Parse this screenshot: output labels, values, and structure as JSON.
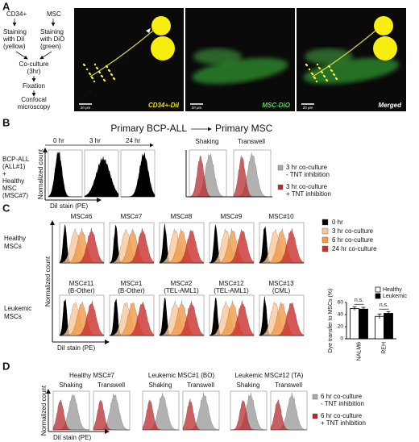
{
  "panel_a": {
    "label": "A",
    "flow": {
      "start_left": "CD34+",
      "start_right": "MSC",
      "stain_left": [
        "Staining",
        "with DiI",
        "(yellow)"
      ],
      "stain_right": [
        "Staining",
        "with DiO",
        "(green)"
      ],
      "coculture": [
        "Co-culture",
        "(3hr)"
      ],
      "fixation": "Fixation",
      "microscopy": [
        "Confocal",
        "microscopy"
      ]
    },
    "images": [
      {
        "caption": "CD34+-DiI",
        "scale_bar": "20 μm"
      },
      {
        "caption": "MSC-DiO",
        "scale_bar": "20 μm"
      },
      {
        "caption": "Merged",
        "scale_bar": "20 μm"
      }
    ]
  },
  "panel_b": {
    "label": "B",
    "title_left": "Primary BCP-ALL",
    "title_right": "Primary MSC",
    "sample": [
      "BCP-ALL",
      "(ALL#1)",
      "+",
      "Healthy",
      "MSC",
      "(MSC#7)"
    ],
    "timepoints": [
      "0 hr",
      "3 hr",
      "24 hr"
    ],
    "conditions": [
      "Shaking",
      "Transwell"
    ],
    "ylabel": "Normalized count",
    "xlabel": "DiI stain (PE)",
    "legend": [
      [
        "3 hr co-culture",
        "- TNT inhibition"
      ],
      [
        "3 hr co-culture",
        "+ TNT inhibition"
      ]
    ]
  },
  "panel_c": {
    "label": "C",
    "row_labels": [
      [
        "Healthy",
        "MSCs"
      ],
      [
        "Leukemic",
        "MSCs"
      ]
    ],
    "healthy": [
      "MSC#6",
      "MSC#7",
      "MSC#8",
      "MSC#9",
      "MSC#10"
    ],
    "leukemic": [
      [
        "MSC#11",
        "(B-Other)"
      ],
      [
        "MSC#1",
        "(B-Other)"
      ],
      [
        "MSC#2",
        "(TEL-AML1)"
      ],
      [
        "MSC#12",
        "(TEL-AML1)"
      ],
      [
        "MSC#13",
        "(CML)"
      ]
    ],
    "ylabel": "Normalized count",
    "xlabel": "DiI stain (PE)",
    "legend": [
      "0 hr",
      "3 hr co-culture",
      "6 hr co-culture",
      "24 hr co-culture"
    ]
  },
  "chart_data": {
    "type": "bar",
    "ylabel": "Dye transfer to MSCs (%)",
    "categories": [
      "NALM6",
      "REH"
    ],
    "series": [
      {
        "name": "Healthy",
        "color": "#ffffff",
        "values": [
          50,
          37
        ],
        "errors": [
          3,
          4
        ]
      },
      {
        "name": "Leukemic",
        "color": "#000000",
        "values": [
          49,
          42
        ],
        "errors": [
          3,
          3
        ]
      }
    ],
    "ylim": [
      0,
      60
    ],
    "yticks": [
      0,
      20,
      40,
      60
    ],
    "annotations": [
      "n.s.",
      "n.s."
    ]
  },
  "panel_d": {
    "label": "D",
    "groups": [
      "Healthy MSC#7",
      "Leukemic MSC#1 (BO)",
      "Leukemic MSC#12 (TA)"
    ],
    "conditions": [
      "Shaking",
      "Transwell"
    ],
    "ylabel": "Normalized count",
    "xlabel": "DiI stain (PE)",
    "legend": [
      [
        "6 hr co-culture",
        "- TNT inhibition"
      ],
      [
        "6 hr co-culture",
        "+ TNT inhibition"
      ]
    ]
  }
}
